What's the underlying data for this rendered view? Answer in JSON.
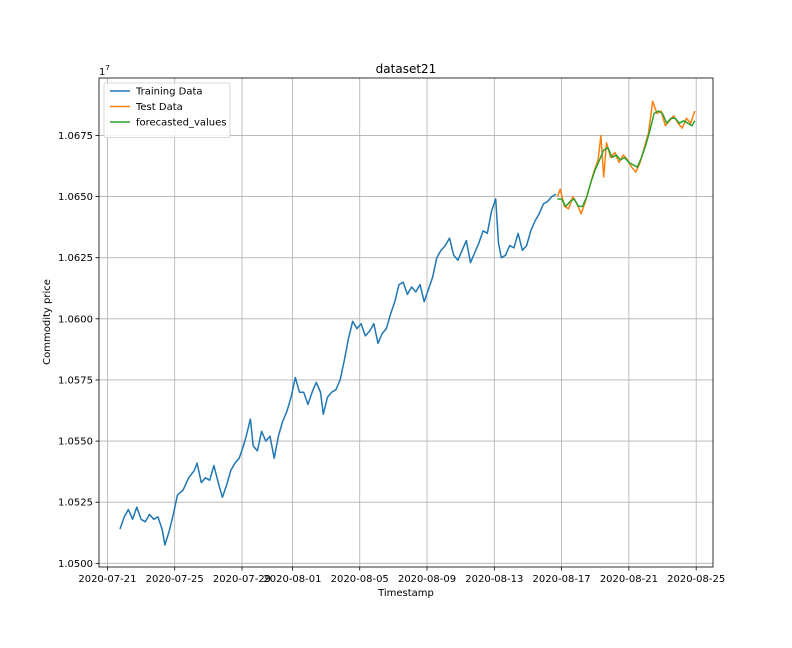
{
  "chart_data": {
    "type": "line",
    "title": "dataset21",
    "xlabel": "Timestamp",
    "ylabel": "Commodity price",
    "y_multiplier_label": "1e7",
    "xlim": [
      "2020-07-20T12:00",
      "2020-08-26T00:00"
    ],
    "ylim": [
      1.04985,
      1.06985
    ],
    "x_ticks": [
      "2020-07-21",
      "2020-07-25",
      "2020-07-29",
      "2020-08-01",
      "2020-08-05",
      "2020-08-09",
      "2020-08-13",
      "2020-08-17",
      "2020-08-21",
      "2020-08-25"
    ],
    "y_ticks": [
      "1.0500",
      "1.0525",
      "1.0550",
      "1.0575",
      "1.0600",
      "1.0625",
      "1.0650",
      "1.0675"
    ],
    "y_tick_values": [
      1.05,
      1.0525,
      1.055,
      1.0575,
      1.06,
      1.0625,
      1.065,
      1.0675
    ],
    "grid": true,
    "legend_position": "upper-left",
    "series": [
      {
        "name": "Training Data",
        "color": "#1f77b4",
        "points": [
          [
            "2020-07-21T18:00",
            1.0514
          ],
          [
            "2020-07-22T00:00",
            1.0519
          ],
          [
            "2020-07-22T06:00",
            1.0522
          ],
          [
            "2020-07-22T12:00",
            1.0518
          ],
          [
            "2020-07-22T18:00",
            1.0523
          ],
          [
            "2020-07-23T00:00",
            1.0518
          ],
          [
            "2020-07-23T06:00",
            1.0517
          ],
          [
            "2020-07-23T12:00",
            1.052
          ],
          [
            "2020-07-23T18:00",
            1.0518
          ],
          [
            "2020-07-24T00:00",
            1.0519
          ],
          [
            "2020-07-24T06:00",
            1.0514
          ],
          [
            "2020-07-24T10:00",
            1.05075
          ],
          [
            "2020-07-24T16:00",
            1.0513
          ],
          [
            "2020-07-24T22:00",
            1.052
          ],
          [
            "2020-07-25T04:00",
            1.0528
          ],
          [
            "2020-07-25T12:00",
            1.053
          ],
          [
            "2020-07-25T20:00",
            1.0535
          ],
          [
            "2020-07-26T04:00",
            1.0538
          ],
          [
            "2020-07-26T08:00",
            1.0541
          ],
          [
            "2020-07-26T14:00",
            1.0533
          ],
          [
            "2020-07-26T20:00",
            1.0535
          ],
          [
            "2020-07-27T02:00",
            1.0534
          ],
          [
            "2020-07-27T08:00",
            1.054
          ],
          [
            "2020-07-27T14:00",
            1.0533
          ],
          [
            "2020-07-27T20:00",
            1.0527
          ],
          [
            "2020-07-28T02:00",
            1.0532
          ],
          [
            "2020-07-28T08:00",
            1.0538
          ],
          [
            "2020-07-28T14:00",
            1.0541
          ],
          [
            "2020-07-28T20:00",
            1.0543
          ],
          [
            "2020-07-29T02:00",
            1.0548
          ],
          [
            "2020-07-29T06:00",
            1.0552
          ],
          [
            "2020-07-29T12:00",
            1.0559
          ],
          [
            "2020-07-29T16:00",
            1.0548
          ],
          [
            "2020-07-29T22:00",
            1.0546
          ],
          [
            "2020-07-30T04:00",
            1.0554
          ],
          [
            "2020-07-30T10:00",
            1.055
          ],
          [
            "2020-07-30T16:00",
            1.0552
          ],
          [
            "2020-07-30T22:00",
            1.0543
          ],
          [
            "2020-07-31T04:00",
            1.0552
          ],
          [
            "2020-07-31T10:00",
            1.0558
          ],
          [
            "2020-07-31T16:00",
            1.0562
          ],
          [
            "2020-07-31T22:00",
            1.0568
          ],
          [
            "2020-08-01T04:00",
            1.0576
          ],
          [
            "2020-08-01T10:00",
            1.057
          ],
          [
            "2020-08-01T16:00",
            1.057
          ],
          [
            "2020-08-01T22:00",
            1.0565
          ],
          [
            "2020-08-02T04:00",
            1.057
          ],
          [
            "2020-08-02T10:00",
            1.0574
          ],
          [
            "2020-08-02T16:00",
            1.057
          ],
          [
            "2020-08-02T20:00",
            1.0561
          ],
          [
            "2020-08-03T02:00",
            1.0568
          ],
          [
            "2020-08-03T08:00",
            1.057
          ],
          [
            "2020-08-03T14:00",
            1.0571
          ],
          [
            "2020-08-03T20:00",
            1.0575
          ],
          [
            "2020-08-04T02:00",
            1.0583
          ],
          [
            "2020-08-04T08:00",
            1.0592
          ],
          [
            "2020-08-04T14:00",
            1.0599
          ],
          [
            "2020-08-04T20:00",
            1.0596
          ],
          [
            "2020-08-05T02:00",
            1.0598
          ],
          [
            "2020-08-05T08:00",
            1.0593
          ],
          [
            "2020-08-05T14:00",
            1.0595
          ],
          [
            "2020-08-05T20:00",
            1.0598
          ],
          [
            "2020-08-06T02:00",
            1.059
          ],
          [
            "2020-08-06T08:00",
            1.0594
          ],
          [
            "2020-08-06T14:00",
            1.0596
          ],
          [
            "2020-08-06T20:00",
            1.0602
          ],
          [
            "2020-08-07T02:00",
            1.0607
          ],
          [
            "2020-08-07T08:00",
            1.0614
          ],
          [
            "2020-08-07T14:00",
            1.0615
          ],
          [
            "2020-08-07T20:00",
            1.061
          ],
          [
            "2020-08-08T02:00",
            1.0613
          ],
          [
            "2020-08-08T08:00",
            1.0611
          ],
          [
            "2020-08-08T14:00",
            1.0614
          ],
          [
            "2020-08-08T20:00",
            1.0607
          ],
          [
            "2020-08-09T02:00",
            1.0612
          ],
          [
            "2020-08-09T08:00",
            1.0617
          ],
          [
            "2020-08-09T14:00",
            1.0625
          ],
          [
            "2020-08-09T20:00",
            1.0628
          ],
          [
            "2020-08-10T02:00",
            1.063
          ],
          [
            "2020-08-10T08:00",
            1.0633
          ],
          [
            "2020-08-10T14:00",
            1.0626
          ],
          [
            "2020-08-10T20:00",
            1.0624
          ],
          [
            "2020-08-11T02:00",
            1.0628
          ],
          [
            "2020-08-11T08:00",
            1.0632
          ],
          [
            "2020-08-11T14:00",
            1.0623
          ],
          [
            "2020-08-11T20:00",
            1.0627
          ],
          [
            "2020-08-12T02:00",
            1.0631
          ],
          [
            "2020-08-12T08:00",
            1.0636
          ],
          [
            "2020-08-12T14:00",
            1.0635
          ],
          [
            "2020-08-12T20:00",
            1.0644
          ],
          [
            "2020-08-13T02:00",
            1.0649
          ],
          [
            "2020-08-13T06:00",
            1.0631
          ],
          [
            "2020-08-13T10:00",
            1.0625
          ],
          [
            "2020-08-13T16:00",
            1.0626
          ],
          [
            "2020-08-13T22:00",
            1.063
          ],
          [
            "2020-08-14T04:00",
            1.0629
          ],
          [
            "2020-08-14T10:00",
            1.0635
          ],
          [
            "2020-08-14T16:00",
            1.0628
          ],
          [
            "2020-08-14T22:00",
            1.063
          ],
          [
            "2020-08-15T04:00",
            1.0636
          ],
          [
            "2020-08-15T10:00",
            1.064
          ],
          [
            "2020-08-15T16:00",
            1.0643
          ],
          [
            "2020-08-15T22:00",
            1.0647
          ],
          [
            "2020-08-16T04:00",
            1.0648
          ],
          [
            "2020-08-16T10:00",
            1.065
          ],
          [
            "2020-08-16T16:00",
            1.0651
          ]
        ]
      },
      {
        "name": "Test Data",
        "color": "#ff7f0e",
        "points": [
          [
            "2020-08-16T18:00",
            1.065
          ],
          [
            "2020-08-16T22:00",
            1.0653
          ],
          [
            "2020-08-17T04:00",
            1.0646
          ],
          [
            "2020-08-17T10:00",
            1.0645
          ],
          [
            "2020-08-17T16:00",
            1.065
          ],
          [
            "2020-08-17T22:00",
            1.0647
          ],
          [
            "2020-08-18T04:00",
            1.0643
          ],
          [
            "2020-08-18T10:00",
            1.0648
          ],
          [
            "2020-08-18T16:00",
            1.0654
          ],
          [
            "2020-08-18T22:00",
            1.066
          ],
          [
            "2020-08-19T04:00",
            1.0665
          ],
          [
            "2020-08-19T08:00",
            1.0675
          ],
          [
            "2020-08-19T12:00",
            1.0658
          ],
          [
            "2020-08-19T16:00",
            1.0672
          ],
          [
            "2020-08-19T22:00",
            1.0666
          ],
          [
            "2020-08-20T04:00",
            1.0668
          ],
          [
            "2020-08-20T10:00",
            1.0664
          ],
          [
            "2020-08-20T16:00",
            1.0667
          ],
          [
            "2020-08-20T22:00",
            1.0665
          ],
          [
            "2020-08-21T04:00",
            1.0662
          ],
          [
            "2020-08-21T10:00",
            1.066
          ],
          [
            "2020-08-21T16:00",
            1.0664
          ],
          [
            "2020-08-21T22:00",
            1.067
          ],
          [
            "2020-08-22T04:00",
            1.0676
          ],
          [
            "2020-08-22T10:00",
            1.0689
          ],
          [
            "2020-08-22T16:00",
            1.0684
          ],
          [
            "2020-08-22T22:00",
            1.0685
          ],
          [
            "2020-08-23T04:00",
            1.0679
          ],
          [
            "2020-08-23T10:00",
            1.0681
          ],
          [
            "2020-08-23T16:00",
            1.0683
          ],
          [
            "2020-08-23T22:00",
            1.068
          ],
          [
            "2020-08-24T04:00",
            1.0678
          ],
          [
            "2020-08-24T10:00",
            1.0682
          ],
          [
            "2020-08-24T16:00",
            1.068
          ],
          [
            "2020-08-24T22:00",
            1.0685
          ]
        ]
      },
      {
        "name": "forecasted_values",
        "color": "#2ca02c",
        "points": [
          [
            "2020-08-16T18:00",
            1.0649
          ],
          [
            "2020-08-17T00:00",
            1.0649
          ],
          [
            "2020-08-17T06:00",
            1.0646
          ],
          [
            "2020-08-17T12:00",
            1.0648
          ],
          [
            "2020-08-17T18:00",
            1.0649
          ],
          [
            "2020-08-18T00:00",
            1.0646
          ],
          [
            "2020-08-18T06:00",
            1.0646
          ],
          [
            "2020-08-18T12:00",
            1.065
          ],
          [
            "2020-08-18T18:00",
            1.0656
          ],
          [
            "2020-08-19T00:00",
            1.0661
          ],
          [
            "2020-08-19T06:00",
            1.0665
          ],
          [
            "2020-08-19T12:00",
            1.0669
          ],
          [
            "2020-08-19T18:00",
            1.067
          ],
          [
            "2020-08-20T00:00",
            1.0666
          ],
          [
            "2020-08-20T06:00",
            1.0667
          ],
          [
            "2020-08-20T12:00",
            1.0665
          ],
          [
            "2020-08-20T18:00",
            1.0666
          ],
          [
            "2020-08-21T00:00",
            1.0664
          ],
          [
            "2020-08-21T06:00",
            1.0663
          ],
          [
            "2020-08-21T12:00",
            1.0662
          ],
          [
            "2020-08-21T18:00",
            1.0666
          ],
          [
            "2020-08-22T00:00",
            1.0671
          ],
          [
            "2020-08-22T06:00",
            1.0677
          ],
          [
            "2020-08-22T12:00",
            1.0684
          ],
          [
            "2020-08-22T18:00",
            1.0685
          ],
          [
            "2020-08-23T00:00",
            1.0684
          ],
          [
            "2020-08-23T06:00",
            1.068
          ],
          [
            "2020-08-23T12:00",
            1.0682
          ],
          [
            "2020-08-23T18:00",
            1.0682
          ],
          [
            "2020-08-24T00:00",
            1.068
          ],
          [
            "2020-08-24T06:00",
            1.0681
          ],
          [
            "2020-08-24T12:00",
            1.068
          ],
          [
            "2020-08-24T18:00",
            1.0679
          ],
          [
            "2020-08-24T22:00",
            1.0681
          ]
        ]
      }
    ]
  }
}
